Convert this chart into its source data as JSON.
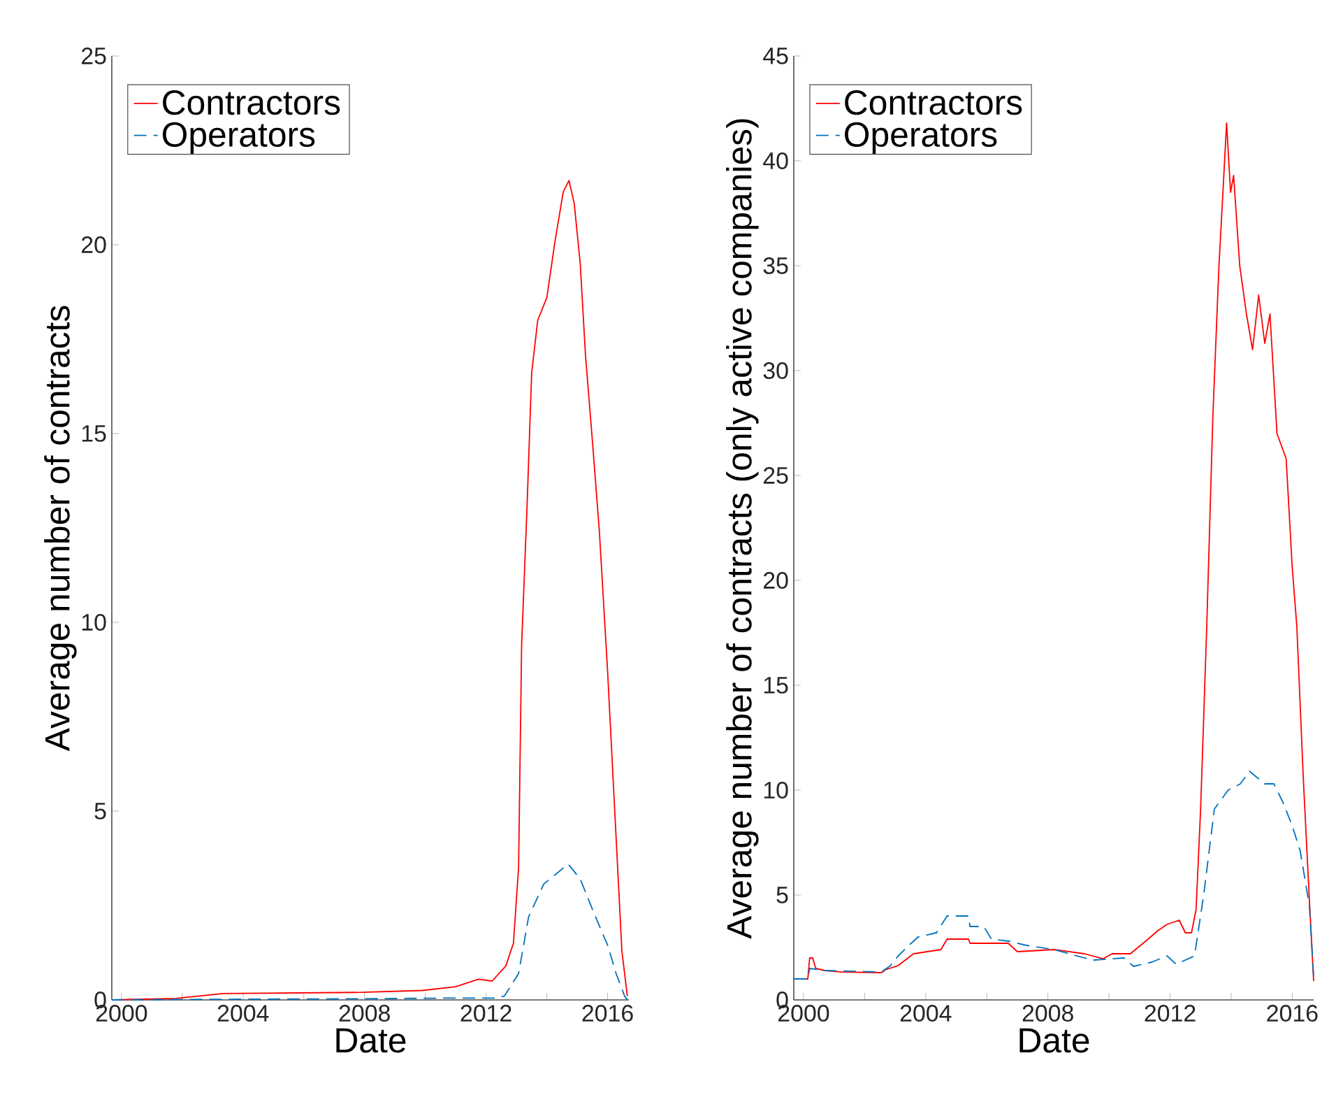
{
  "chart_data": [
    {
      "type": "line",
      "xlabel": "Date",
      "ylabel": "Average number of contracts",
      "legend": "top left",
      "xlim": [
        1999.68,
        2016.7
      ],
      "ylim": [
        0,
        25
      ],
      "xticks": [
        2000,
        {
          "value": 2002,
          "label": null
        },
        2004,
        {
          "value": 2006,
          "label": null
        },
        2008,
        {
          "value": 2010,
          "label": null
        },
        2012,
        {
          "value": 2014,
          "label": null
        },
        2016
      ],
      "yticks": [
        0,
        5,
        10,
        15,
        20,
        25
      ],
      "series": [
        {
          "name": "Contractors",
          "color": "#ff0000",
          "line_style": "solid",
          "x": [
            1999.68,
            2001.8,
            2003.35,
            2007.9,
            2009.9,
            2011.0,
            2011.75,
            2012.2,
            2012.65,
            2012.9,
            2013.07,
            2013.17,
            2013.35,
            2013.5,
            2013.7,
            2014.0,
            2014.27,
            2014.54,
            2014.73,
            2014.9,
            2015.1,
            2015.27,
            2015.5,
            2015.73,
            2016.0,
            2016.28,
            2016.47,
            2016.65
          ],
          "values": [
            0,
            0.04,
            0.17,
            0.2,
            0.25,
            0.35,
            0.55,
            0.5,
            0.9,
            1.5,
            3.5,
            9.4,
            13.1,
            16.6,
            18.0,
            18.6,
            20.1,
            21.4,
            21.7,
            21.1,
            19.5,
            17.1,
            14.8,
            12.4,
            8.7,
            4.3,
            1.3,
            0.1
          ]
        },
        {
          "name": "Operators",
          "color": "#0072bd",
          "line_style": "dashed",
          "x": [
            1999.68,
            2004.0,
            2008.0,
            2011.0,
            2012.3,
            2012.6,
            2013.07,
            2013.4,
            2013.9,
            2014.36,
            2014.7,
            2015.1,
            2015.55,
            2016.0,
            2016.28,
            2016.56,
            2016.65
          ],
          "values": [
            0,
            0.02,
            0.03,
            0.05,
            0.05,
            0.1,
            0.7,
            2.2,
            3.07,
            3.37,
            3.6,
            3.2,
            2.3,
            1.45,
            0.7,
            0.1,
            0
          ]
        }
      ]
    },
    {
      "type": "line",
      "xlabel": "Date",
      "ylabel": "Average number of contracts (only active companies)",
      "legend": "top left",
      "xlim": [
        1999.68,
        2016.7
      ],
      "ylim": [
        0,
        45
      ],
      "xticks": [
        2000,
        {
          "value": 2002,
          "label": null
        },
        2004,
        {
          "value": 2006,
          "label": null
        },
        2008,
        {
          "value": 2010,
          "label": null
        },
        2012,
        {
          "value": 2014,
          "label": null
        },
        2016
      ],
      "yticks": [
        0,
        5,
        10,
        15,
        20,
        25,
        30,
        35,
        40,
        45
      ],
      "series": [
        {
          "name": "Contractors",
          "color": "#ff0000",
          "line_style": "solid",
          "x": [
            1999.68,
            2000.14,
            2000.2,
            2000.3,
            2000.4,
            2000.7,
            2001.25,
            2002.55,
            2002.7,
            2003.1,
            2003.6,
            2004.5,
            2004.7,
            2005.4,
            2005.45,
            2006.7,
            2007.0,
            2008.2,
            2009.2,
            2009.8,
            2010.1,
            2010.7,
            2011.2,
            2011.6,
            2011.9,
            2012.3,
            2012.5,
            2012.7,
            2012.85,
            2013.0,
            2013.2,
            2013.4,
            2013.6,
            2013.73,
            2013.85,
            2013.98,
            2014.08,
            2014.28,
            2014.5,
            2014.7,
            2014.9,
            2015.1,
            2015.27,
            2015.5,
            2015.8,
            2016.0,
            2016.15,
            2016.36,
            2016.56,
            2016.7
          ],
          "values": [
            1.0,
            1.0,
            2.0,
            2.0,
            1.5,
            1.4,
            1.33,
            1.3,
            1.45,
            1.64,
            2.2,
            2.4,
            2.9,
            2.9,
            2.7,
            2.7,
            2.3,
            2.4,
            2.2,
            1.96,
            2.2,
            2.2,
            2.8,
            3.3,
            3.6,
            3.8,
            3.2,
            3.2,
            4.3,
            9.1,
            17.8,
            27.8,
            35.0,
            38.5,
            41.8,
            38.5,
            39.3,
            35.0,
            32.7,
            31.0,
            33.6,
            31.3,
            32.7,
            27.0,
            25.8,
            20.6,
            17.8,
            10.6,
            4.8,
            0.9
          ]
        },
        {
          "name": "Operators",
          "color": "#0072bd",
          "line_style": "dashed",
          "x": [
            1999.68,
            2000.14,
            2000.2,
            2000.7,
            2002.55,
            2002.85,
            2003.1,
            2003.45,
            2003.75,
            2004.35,
            2004.7,
            2005.4,
            2005.45,
            2005.9,
            2006.15,
            2006.7,
            2007.3,
            2008.2,
            2009.2,
            2009.5,
            2010.5,
            2010.8,
            2011.4,
            2011.9,
            2012.2,
            2012.8,
            2013.1,
            2013.45,
            2013.9,
            2014.3,
            2014.6,
            2015.1,
            2015.4,
            2015.7,
            2016.0,
            2016.26,
            2016.56,
            2016.7
          ],
          "values": [
            1.0,
            1.0,
            1.5,
            1.4,
            1.33,
            1.64,
            2.1,
            2.6,
            3.0,
            3.2,
            4.0,
            4.0,
            3.5,
            3.5,
            2.9,
            2.8,
            2.6,
            2.4,
            2.0,
            1.9,
            2.0,
            1.6,
            1.8,
            2.1,
            1.7,
            2.1,
            5.0,
            9.1,
            10.0,
            10.3,
            10.9,
            10.3,
            10.3,
            9.4,
            8.3,
            7.1,
            4.5,
            1.1
          ]
        }
      ]
    }
  ]
}
